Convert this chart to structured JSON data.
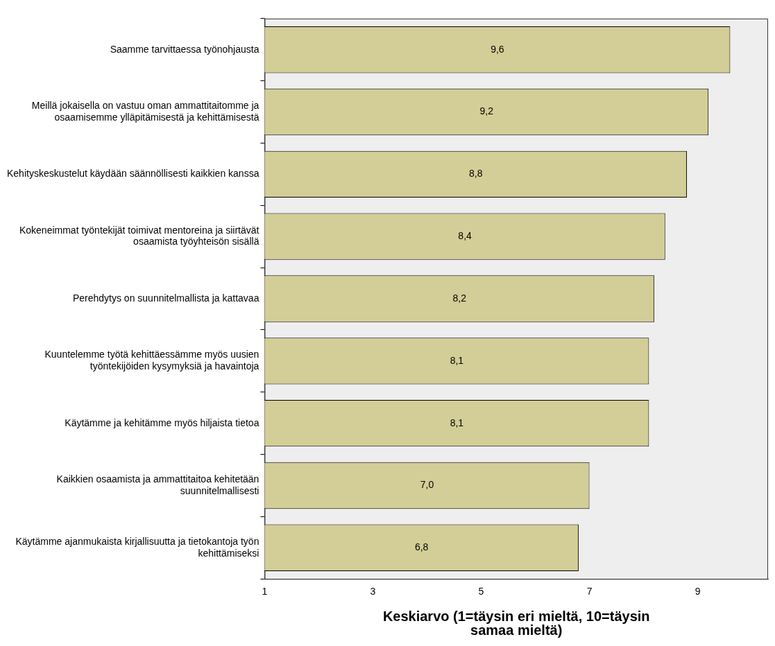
{
  "chart_data": {
    "type": "bar",
    "orientation": "horizontal",
    "xlabel": "Keskiarvo (1=täysin eri mieltä, 10=täysin samaa mieltä)",
    "categories": [
      "Saamme tarvittaessa työnohjausta",
      "Meillä jokaisella on vastuu oman ammattitaitomme ja osaamisemme ylläpitämisestä ja kehittämisestä",
      "Kehityskeskustelut käydään säännöllisesti kaikkien kanssa",
      "Kokeneimmat työntekijät toimivat mentoreina ja siirtävät osaamista työyhteisön sisällä",
      "Perehdytys on suunnitelmallista ja kattavaa",
      "Kuuntelemme työtä kehittäessämme myös uusien työntekijöiden kysymyksiä ja havaintoja",
      "Käytämme ja kehitämme myös hiljaista tietoa",
      "Kaikkien osaamista ja ammattitaitoa kehitetään suunnitelmallisesti",
      "Käytämme ajanmukaista kirjallisuutta ja tietokantoja työn kehittämiseksi"
    ],
    "values": [
      9.6,
      9.2,
      8.8,
      8.4,
      8.2,
      8.1,
      8.1,
      7.0,
      6.8
    ],
    "value_labels": [
      "9,6",
      "9,2",
      "8,8",
      "8,4",
      "8,2",
      "8,1",
      "8,1",
      "7,0",
      "6,8"
    ],
    "color": "#d3cd97",
    "xlim": [
      1,
      10.3
    ],
    "xticks": [
      1,
      3,
      5,
      7,
      9
    ],
    "grid": false,
    "legend": false
  }
}
